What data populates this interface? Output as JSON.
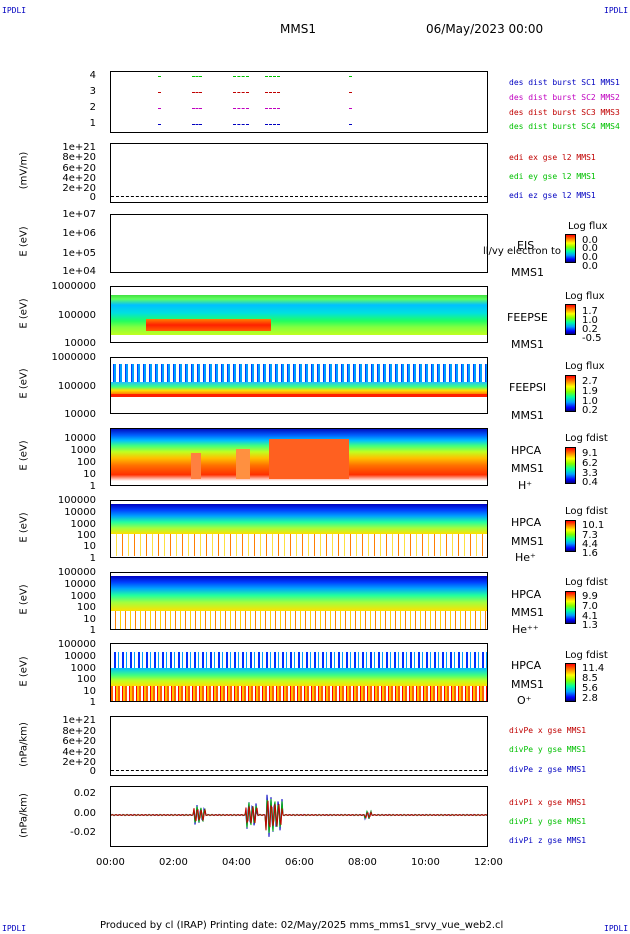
{
  "corners": {
    "tl": "IPDLI",
    "tr": "IPDLI",
    "bl": "IPDLI",
    "br": "IPDLI"
  },
  "header": {
    "mission": "MMS1",
    "date": "06/May/2023 00:00"
  },
  "footer": "Produced by cl (IRAP)   Printing date: 02/May/2025   mms_mms1_srvy_vue_web2.cl",
  "colors": {
    "sc1": "#0000c0",
    "sc2": "#c000c0",
    "sc3": "#c00000",
    "sc4": "#00c000",
    "ex": "#c00000",
    "ey": "#00c000",
    "ez": "#0000c0"
  },
  "chart_data": [
    {
      "type": "scatter",
      "name": "burst",
      "ytick_labels": [
        "4",
        "3",
        "2",
        "1"
      ],
      "legend": [
        "des dist burst SC1 MMS1",
        "des dist burst SC2 MMS2",
        "des dist burst SC3 MMS3",
        "des dist burst SC4 MMS4"
      ],
      "segments_hours": [
        [
          1.5,
          1.6
        ],
        [
          2.6,
          2.9
        ],
        [
          3.9,
          4.4
        ],
        [
          4.9,
          5.4
        ],
        [
          7.6,
          7.7
        ]
      ]
    },
    {
      "type": "line",
      "ylabel": "(mV/m)",
      "ytick_labels": [
        "1e+21",
        "8e+20",
        "6e+20",
        "4e+20",
        "2e+20",
        "0"
      ],
      "legend": [
        "edi ex gse l2 MMS1",
        "edi ey gse l2 MMS1",
        "edi ez gse l2 MMS1"
      ]
    },
    {
      "type": "heatmap",
      "ylabel": "E (eV)",
      "ytick_labels": [
        "1e+07",
        "1e+06",
        "1e+05",
        "1e+04"
      ],
      "right_labels": [
        "EIS",
        "MMS1"
      ],
      "overlay": "ll/vy electron to",
      "cb_title": "Log flux",
      "cb_values": [
        "0.0",
        "0.0",
        "0.0",
        "0.0"
      ]
    },
    {
      "type": "heatmap",
      "ylabel": "E (eV)",
      "ytick_labels": [
        "1000000",
        "100000",
        "10000"
      ],
      "right_labels": [
        "FEEPSE",
        "MMS1"
      ],
      "cb_title": "Log flux",
      "cb_values": [
        "1.7",
        "1.0",
        "0.2",
        "-0.5"
      ]
    },
    {
      "type": "heatmap",
      "ylabel": "E (eV)",
      "ytick_labels": [
        "1000000",
        "100000",
        "10000"
      ],
      "right_labels": [
        "FEEPSI",
        "MMS1"
      ],
      "cb_title": "Log flux",
      "cb_values": [
        "2.7",
        "1.9",
        "1.0",
        "0.2"
      ]
    },
    {
      "type": "heatmap",
      "ylabel": "E (eV)",
      "ytick_labels": [
        "10000",
        "1000",
        "100",
        "10",
        "1"
      ],
      "right_labels": [
        "HPCA",
        "MMS1",
        "H⁺"
      ],
      "cb_title": "Log fdist",
      "cb_values": [
        "9.1",
        "6.2",
        "3.3",
        "0.4"
      ]
    },
    {
      "type": "heatmap",
      "ylabel": "E (eV)",
      "ytick_labels": [
        "100000",
        "10000",
        "1000",
        "100",
        "10",
        "1"
      ],
      "right_labels": [
        "HPCA",
        "MMS1",
        "He⁺"
      ],
      "cb_title": "Log fdist",
      "cb_values": [
        "10.1",
        "7.3",
        "4.4",
        "1.6"
      ]
    },
    {
      "type": "heatmap",
      "ylabel": "E (eV)",
      "ytick_labels": [
        "100000",
        "10000",
        "1000",
        "100",
        "10",
        "1"
      ],
      "right_labels": [
        "HPCA",
        "MMS1",
        "He⁺⁺"
      ],
      "cb_title": "Log fdist",
      "cb_values": [
        "9.9",
        "7.0",
        "4.1",
        "1.3"
      ]
    },
    {
      "type": "heatmap",
      "ylabel": "E (eV)",
      "ytick_labels": [
        "100000",
        "10000",
        "1000",
        "100",
        "10",
        "1"
      ],
      "right_labels": [
        "HPCA",
        "MMS1",
        "O⁺"
      ],
      "cb_title": "Log fdist",
      "cb_values": [
        "11.4",
        "8.5",
        "5.6",
        "2.8"
      ]
    },
    {
      "type": "line",
      "ylabel": "(nPa/km)",
      "ytick_labels": [
        "1e+21",
        "8e+20",
        "6e+20",
        "4e+20",
        "2e+20",
        "0"
      ],
      "legend": [
        "divPe x gse MMS1",
        "divPe y gse MMS1",
        "divPe z gse MMS1"
      ]
    },
    {
      "type": "line",
      "ylabel": "(nPa/km)",
      "ytick_labels": [
        "0.02",
        "0.00",
        "-0.02"
      ],
      "legend": [
        "divPi x gse MMS1",
        "divPi y gse MMS1",
        "divPi z gse MMS1"
      ]
    }
  ],
  "xaxis": {
    "labels": [
      "00:00",
      "02:00",
      "04:00",
      "06:00",
      "08:00",
      "10:00",
      "12:00"
    ],
    "range_hours": [
      0,
      12
    ]
  }
}
